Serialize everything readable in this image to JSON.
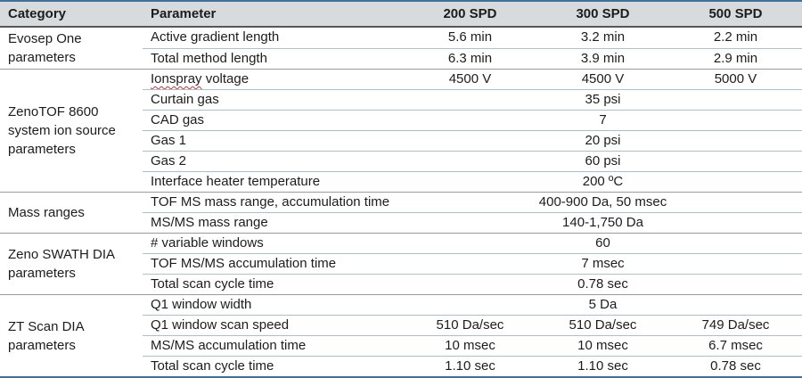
{
  "colors": {
    "outer_border": "#41719c",
    "header_background": "#d8dbde",
    "header_separator": "#54575a",
    "group_separator": "#9b9b9b",
    "row_separator": "#a9c0ce",
    "spellcheck_underline": "#cc3333",
    "text": "#1c1c1c"
  },
  "table": {
    "headers": [
      "Category",
      "Parameter",
      "200 SPD",
      "300 SPD",
      "500 SPD"
    ],
    "groups": [
      {
        "category": "Evosep One parameters",
        "rows": [
          {
            "parameter": "Active gradient length",
            "values": [
              "5.6 min",
              "3.2 min",
              "2.2 min"
            ]
          },
          {
            "parameter": "Total method length",
            "values": [
              "6.3 min",
              "3.9 min",
              "2.9 min"
            ]
          }
        ]
      },
      {
        "category": "ZenoTOF 8600 system ion source parameters",
        "rows": [
          {
            "parameter": "Ionspray voltage",
            "squiggle": "Ionspray",
            "values": [
              "4500 V",
              "4500 V",
              "5000 V"
            ]
          },
          {
            "parameter": "Curtain gas",
            "span": "35 psi"
          },
          {
            "parameter": "CAD gas",
            "span": "7"
          },
          {
            "parameter": "Gas 1",
            "span": "20 psi"
          },
          {
            "parameter": "Gas 2",
            "span": "60 psi"
          },
          {
            "parameter": "Interface heater temperature",
            "span": "200 ºC"
          }
        ]
      },
      {
        "category": "Mass ranges",
        "rows": [
          {
            "parameter": "TOF MS mass range, accumulation time",
            "span": "400-900 Da, 50 msec"
          },
          {
            "parameter": "MS/MS mass range",
            "span": "140-1,750 Da"
          }
        ]
      },
      {
        "category": "Zeno SWATH DIA parameters",
        "rows": [
          {
            "parameter": "# variable windows",
            "span": "60"
          },
          {
            "parameter": "TOF MS/MS accumulation time",
            "span": "7 msec"
          },
          {
            "parameter": "Total scan cycle time",
            "span": "0.78 sec"
          }
        ]
      },
      {
        "category": "ZT Scan DIA parameters",
        "rows": [
          {
            "parameter": "Q1 window width",
            "span": "5 Da"
          },
          {
            "parameter": "Q1 window scan speed",
            "values": [
              "510 Da/sec",
              "510 Da/sec",
              "749 Da/sec"
            ]
          },
          {
            "parameter": "MS/MS accumulation time",
            "values": [
              "10 msec",
              "10 msec",
              "6.7 msec"
            ]
          },
          {
            "parameter": "Total scan cycle time",
            "values": [
              "1.10 sec",
              "1.10 sec",
              "0.78 sec"
            ]
          }
        ]
      }
    ]
  }
}
